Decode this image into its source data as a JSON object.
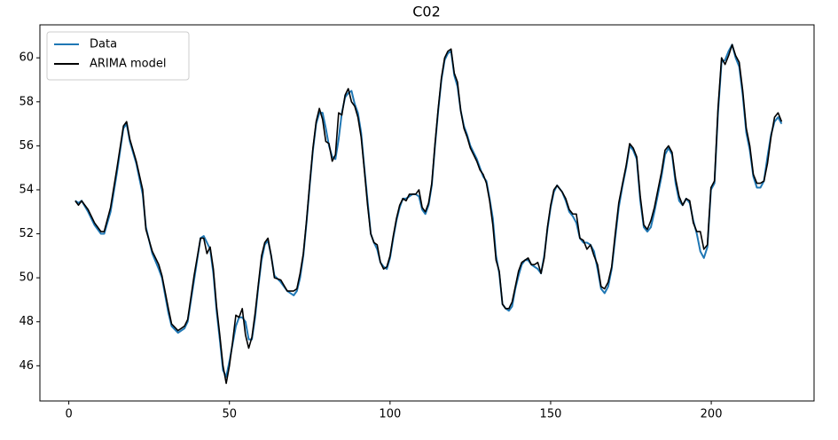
{
  "chart_data": {
    "type": "line",
    "title": "C02",
    "x": [
      2,
      3,
      4,
      6,
      8,
      10,
      11,
      13,
      15,
      17,
      18,
      19,
      21,
      23,
      24,
      26,
      28,
      29,
      31,
      32,
      34,
      36,
      37,
      39,
      41,
      42,
      43,
      44,
      45,
      46,
      47,
      48,
      49,
      50,
      51,
      52,
      53,
      54,
      55,
      56,
      57,
      58,
      59,
      60,
      61,
      62,
      63,
      64,
      66,
      68,
      70,
      71,
      72,
      73,
      74,
      75,
      76,
      77,
      78,
      79,
      80,
      81,
      82,
      83,
      84,
      85,
      86,
      87,
      88,
      89,
      90,
      91,
      92,
      93,
      94,
      95,
      96,
      97,
      98,
      99,
      100,
      101,
      102,
      103,
      104,
      105,
      106,
      107,
      108,
      109,
      110,
      111,
      112,
      113,
      114,
      115,
      116,
      117,
      118,
      119,
      120,
      121,
      122,
      123,
      124,
      125,
      126,
      127,
      128,
      129,
      130,
      131,
      132,
      133,
      134,
      135,
      136,
      137,
      138,
      139,
      140,
      141,
      142,
      143,
      144,
      145,
      146,
      147,
      148,
      149,
      150,
      151,
      152,
      153.6,
      154.7,
      155.8,
      156.9,
      158.0,
      159.1,
      160.2,
      161.3,
      162.4,
      163.5,
      164.6,
      165.7,
      166.8,
      167.9,
      169.0,
      170.1,
      171.2,
      172.4,
      173.5,
      174.6,
      175.7,
      176.8,
      177.9,
      179.0,
      180.1,
      181.2,
      182.3,
      183.4,
      184.5,
      185.6,
      186.7,
      187.8,
      188.9,
      190.0,
      191.1,
      192.2,
      193.3,
      194.4,
      195.5,
      196.6,
      197.7,
      198.8,
      199.9,
      201.0,
      202.1,
      203.2,
      204.3,
      205.4,
      206.5,
      207.6,
      208.7,
      209.8,
      210.9,
      212.0,
      213.1,
      214.2,
      215.3,
      216.4,
      217.5,
      218.6,
      219.7,
      220.8,
      221.9
    ],
    "series": [
      {
        "name": "Data",
        "color": "#1f77b4",
        "values": [
          53.5,
          53.4,
          53.5,
          53.0,
          52.4,
          52.0,
          52.0,
          53.0,
          54.8,
          56.8,
          57.0,
          56.2,
          55.2,
          53.8,
          52.3,
          51.1,
          50.4,
          50.0,
          48.4,
          47.8,
          47.5,
          47.7,
          48.0,
          49.9,
          51.8,
          51.9,
          51.6,
          51.3,
          50.2,
          48.5,
          47.2,
          45.8,
          45.5,
          46.2,
          47.0,
          47.8,
          48.2,
          48.2,
          48.0,
          47.2,
          47.2,
          48.2,
          49.6,
          50.8,
          51.5,
          51.7,
          51.0,
          50.1,
          49.8,
          49.4,
          49.2,
          49.4,
          50.0,
          51.0,
          52.5,
          54.2,
          55.8,
          57.0,
          57.5,
          57.5,
          56.8,
          56.0,
          55.5,
          55.4,
          56.3,
          57.5,
          58.2,
          58.4,
          58.5,
          57.9,
          57.5,
          56.6,
          55.0,
          53.5,
          52.0,
          51.6,
          51.3,
          50.7,
          50.5,
          50.4,
          50.9,
          51.8,
          52.6,
          53.2,
          53.6,
          53.6,
          53.7,
          53.8,
          53.8,
          53.7,
          53.1,
          52.9,
          53.3,
          54.2,
          56.0,
          57.6,
          59.0,
          59.9,
          60.2,
          60.3,
          59.2,
          58.7,
          57.6,
          56.9,
          56.5,
          56.0,
          55.7,
          55.4,
          55.0,
          54.6,
          54.4,
          53.6,
          52.7,
          51.0,
          50.2,
          48.8,
          48.6,
          48.5,
          48.7,
          49.5,
          50.1,
          50.6,
          50.8,
          50.8,
          50.6,
          50.5,
          50.4,
          50.2,
          51.0,
          52.2,
          53.2,
          53.9,
          54.2,
          53.9,
          53.5,
          53.0,
          52.8,
          52.5,
          51.8,
          51.6,
          51.6,
          51.5,
          51.2,
          50.4,
          49.5,
          49.3,
          49.6,
          50.4,
          51.8,
          53.2,
          54.2,
          55.0,
          56.0,
          55.8,
          55.4,
          53.5,
          52.3,
          52.1,
          52.3,
          53.0,
          53.8,
          54.6,
          55.6,
          55.9,
          55.6,
          54.3,
          53.5,
          53.3,
          53.6,
          53.4,
          52.6,
          52.0,
          51.2,
          50.9,
          51.4,
          54.0,
          54.3,
          57.5,
          59.8,
          59.9,
          60.3,
          60.6,
          60.0,
          59.6,
          58.3,
          56.6,
          55.8,
          54.6,
          54.1,
          54.1,
          54.4,
          55.5,
          56.5,
          57.1,
          57.3,
          57.0
        ]
      },
      {
        "name": "ARIMA model",
        "color": "#000000",
        "values": [
          53.5,
          53.3,
          53.5,
          53.1,
          52.5,
          52.1,
          52.1,
          53.2,
          55.0,
          56.9,
          57.1,
          56.3,
          55.3,
          54.0,
          52.2,
          51.2,
          50.6,
          50.1,
          48.6,
          47.9,
          47.6,
          47.8,
          48.1,
          50.1,
          51.8,
          51.8,
          51.1,
          51.4,
          50.4,
          48.7,
          47.4,
          46.0,
          45.2,
          46.0,
          47.1,
          48.3,
          48.2,
          48.6,
          47.4,
          46.8,
          47.3,
          48.4,
          49.7,
          51.0,
          51.6,
          51.8,
          51.0,
          50.0,
          49.9,
          49.4,
          49.4,
          49.5,
          50.2,
          51.1,
          52.6,
          54.3,
          55.9,
          57.1,
          57.7,
          57.2,
          56.2,
          56.1,
          55.3,
          55.6,
          57.5,
          57.4,
          58.3,
          58.6,
          58.0,
          57.8,
          57.3,
          56.4,
          54.9,
          53.3,
          52.0,
          51.6,
          51.5,
          50.7,
          50.4,
          50.5,
          51.0,
          51.9,
          52.7,
          53.3,
          53.6,
          53.5,
          53.8,
          53.8,
          53.8,
          54.0,
          53.2,
          53.0,
          53.4,
          54.3,
          56.1,
          57.7,
          59.1,
          60.0,
          60.3,
          60.4,
          59.3,
          58.9,
          57.6,
          56.8,
          56.4,
          55.9,
          55.6,
          55.3,
          54.9,
          54.7,
          54.3,
          53.5,
          52.4,
          50.8,
          50.3,
          48.8,
          48.6,
          48.6,
          48.9,
          49.6,
          50.3,
          50.7,
          50.8,
          50.9,
          50.6,
          50.6,
          50.7,
          50.2,
          50.9,
          52.3,
          53.3,
          54.0,
          54.2,
          53.9,
          53.6,
          53.1,
          52.9,
          52.9,
          51.8,
          51.7,
          51.3,
          51.5,
          51.0,
          50.6,
          49.6,
          49.5,
          49.8,
          50.5,
          52.0,
          53.4,
          54.3,
          55.1,
          56.1,
          55.9,
          55.5,
          53.7,
          52.4,
          52.2,
          52.6,
          53.2,
          54.0,
          54.8,
          55.8,
          56.0,
          55.7,
          54.5,
          53.7,
          53.3,
          53.6,
          53.5,
          52.5,
          52.1,
          52.1,
          51.3,
          51.5,
          54.1,
          54.4,
          57.7,
          60.0,
          59.7,
          60.1,
          60.6,
          60.1,
          59.8,
          58.5,
          56.8,
          56.0,
          54.7,
          54.3,
          54.3,
          54.4,
          55.2,
          56.4,
          57.3,
          57.5,
          57.1
        ]
      }
    ],
    "xlim": [
      -9,
      232
    ],
    "ylim": [
      44.4,
      61.5
    ],
    "xticks": [
      0,
      50,
      100,
      150,
      200
    ],
    "yticks": [
      46,
      48,
      50,
      52,
      54,
      56,
      58,
      60
    ],
    "legend": "upper left"
  }
}
